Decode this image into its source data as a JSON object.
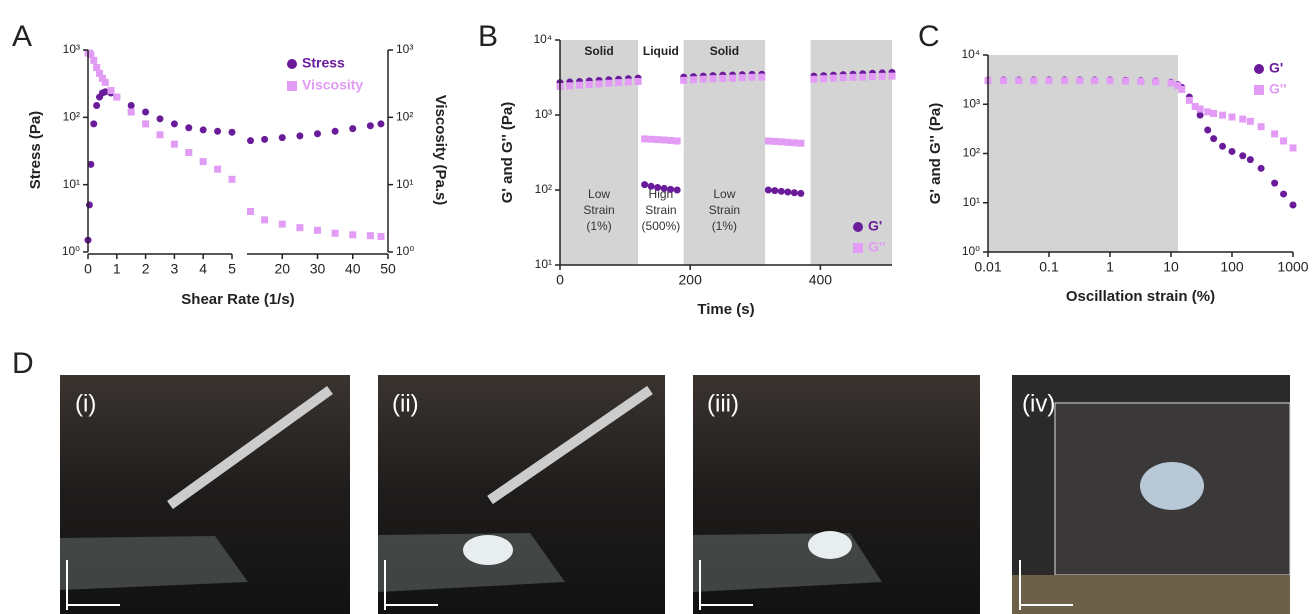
{
  "chart_data": [
    {
      "type": "scatter",
      "panel_label": "A",
      "xlabel": "Shear Rate (1/s)",
      "ylabel": "Stress (Pa)",
      "y2label": "Viscosity (Pa.s)",
      "log_y": true,
      "ylim": [
        1,
        1000
      ],
      "yticks": [
        {
          "value": 1,
          "label": "10⁰"
        },
        {
          "value": 10,
          "label": "10¹"
        },
        {
          "value": 100,
          "label": "10²"
        },
        {
          "value": 1000,
          "label": "10³"
        }
      ],
      "y2lim": [
        1,
        1000
      ],
      "y2ticks": [
        {
          "value": 1,
          "label": "10⁰"
        },
        {
          "value": 10,
          "label": "10¹"
        },
        {
          "value": 100,
          "label": "10²"
        },
        {
          "value": 1000,
          "label": "10³"
        }
      ],
      "segments": [
        {
          "xlim": [
            0,
            5
          ],
          "xticks": [
            0,
            1,
            2,
            3,
            4,
            5
          ],
          "x": [
            0,
            0.05,
            0.1,
            0.2,
            0.3,
            0.4,
            0.5,
            0.6,
            0.8,
            1,
            1.5,
            2,
            2.5,
            3,
            3.5,
            4,
            4.5,
            5
          ]
        },
        {
          "xlim": [
            10,
            50
          ],
          "xticks": [
            20,
            30,
            40,
            50
          ],
          "x": [
            11,
            15,
            20,
            25,
            30,
            35,
            40,
            45,
            48
          ]
        }
      ],
      "series": [
        {
          "name": "Stress",
          "color": "#6a1b9a",
          "marker": "circle",
          "values": [
            [
              1.5,
              5,
              20,
              80,
              150,
              200,
              230,
              240,
              230,
              200,
              150,
              120,
              95,
              80,
              70,
              65,
              62,
              60
            ],
            [
              45,
              47,
              50,
              53,
              57,
              62,
              68,
              75,
              80
            ]
          ]
        },
        {
          "name": "Viscosity",
          "color": "#e29cf5",
          "marker": "square",
          "axis": "y2",
          "values": [
            [
              900,
              900,
              850,
              700,
              550,
              450,
              380,
              330,
              250,
              200,
              120,
              80,
              55,
              40,
              30,
              22,
              17,
              12
            ],
            [
              4,
              3,
              2.6,
              2.3,
              2.1,
              1.9,
              1.8,
              1.75,
              1.7
            ]
          ]
        }
      ],
      "legend": "upper right"
    },
    {
      "type": "scatter",
      "panel_label": "B",
      "xlabel": "Time (s)",
      "ylabel": "G' and G'' (Pa)",
      "log_y": true,
      "xlim": [
        0,
        510
      ],
      "xticks": [
        0,
        200,
        400
      ],
      "ylim": [
        10,
        10000
      ],
      "yticks": [
        {
          "value": 10,
          "label": "10¹"
        },
        {
          "value": 100,
          "label": "10²"
        },
        {
          "value": 1000,
          "label": "10³"
        },
        {
          "value": 10000,
          "label": "10⁴"
        }
      ],
      "regions": [
        {
          "range": [
            0,
            120
          ],
          "shaded": true,
          "label": "Solid",
          "note": [
            "Low",
            "Strain",
            "(1%)"
          ]
        },
        {
          "range": [
            120,
            190
          ],
          "shaded": false,
          "label": "Liquid",
          "note": [
            "High",
            "Strain",
            "(500%)"
          ]
        },
        {
          "range": [
            190,
            315
          ],
          "shaded": true,
          "label": "Solid",
          "note": [
            "Low",
            "Strain",
            "(1%)"
          ]
        },
        {
          "range": [
            385,
            510
          ],
          "shaded": true
        }
      ],
      "x": [
        0,
        15,
        30,
        45,
        60,
        75,
        90,
        105,
        120,
        null,
        130,
        140,
        150,
        160,
        170,
        180,
        null,
        190,
        205,
        220,
        235,
        250,
        265,
        280,
        295,
        310,
        null,
        320,
        330,
        340,
        350,
        360,
        370,
        null,
        390,
        405,
        420,
        435,
        450,
        465,
        480,
        495,
        510
      ],
      "series": [
        {
          "name": "G'",
          "color": "#6a1b9a",
          "marker": "circle",
          "values": [
            2700,
            2750,
            2800,
            2850,
            2900,
            2950,
            3000,
            3050,
            3100,
            null,
            118,
            112,
            108,
            105,
            102,
            100,
            null,
            3200,
            3250,
            3300,
            3350,
            3400,
            3420,
            3450,
            3480,
            3500,
            null,
            100,
            98,
            96,
            94,
            92,
            90,
            null,
            3300,
            3350,
            3400,
            3450,
            3500,
            3550,
            3600,
            3650,
            3700
          ]
        },
        {
          "name": "G''",
          "color": "#e29cf5",
          "marker": "square",
          "values": [
            2400,
            2450,
            2500,
            2550,
            2600,
            2650,
            2700,
            2750,
            2800,
            null,
            480,
            475,
            470,
            465,
            458,
            450,
            null,
            2900,
            2950,
            3000,
            3050,
            3080,
            3100,
            3150,
            3180,
            3200,
            null,
            450,
            445,
            440,
            432,
            426,
            420,
            null,
            3000,
            3050,
            3100,
            3150,
            3180,
            3200,
            3250,
            3280,
            3300
          ]
        }
      ],
      "legend": "lower right"
    },
    {
      "type": "scatter",
      "panel_label": "C",
      "xlabel": "Oscillation strain (%)",
      "ylabel": "G' and G'' (Pa)",
      "log_x": true,
      "log_y": true,
      "xlim": [
        0.01,
        1000
      ],
      "xticks": [
        0.01,
        0.1,
        1,
        10,
        100,
        1000
      ],
      "ylim": [
        1,
        10000
      ],
      "yticks": [
        {
          "value": 1,
          "label": "10⁰"
        },
        {
          "value": 10,
          "label": "10¹"
        },
        {
          "value": 100,
          "label": "10²"
        },
        {
          "value": 1000,
          "label": "10³"
        },
        {
          "value": 10000,
          "label": "10⁴"
        }
      ],
      "regions": [
        {
          "range": [
            0.01,
            13
          ],
          "shaded": true
        }
      ],
      "x": [
        0.01,
        0.018,
        0.032,
        0.056,
        0.1,
        0.18,
        0.32,
        0.56,
        1,
        1.8,
        3.2,
        5.6,
        10,
        13,
        15,
        20,
        25,
        30,
        40,
        50,
        70,
        100,
        150,
        200,
        300,
        500,
        700,
        1000
      ],
      "series": [
        {
          "name": "G'",
          "color": "#6a1b9a",
          "marker": "circle",
          "values": [
            3100,
            3100,
            3100,
            3100,
            3100,
            3100,
            3100,
            3100,
            3100,
            3050,
            3000,
            2950,
            2800,
            2500,
            2200,
            1400,
            900,
            600,
            300,
            200,
            140,
            110,
            90,
            75,
            50,
            25,
            15,
            9
          ]
        },
        {
          "name": "G''",
          "color": "#e29cf5",
          "marker": "square",
          "values": [
            3000,
            3000,
            3000,
            3000,
            3000,
            3000,
            3000,
            3000,
            3000,
            2950,
            2900,
            2850,
            2700,
            2400,
            2000,
            1200,
            900,
            800,
            700,
            650,
            600,
            550,
            500,
            450,
            350,
            250,
            180,
            130
          ]
        }
      ],
      "legend": "upper right"
    }
  ],
  "photos": {
    "panel_label": "D",
    "items": [
      "(i)",
      "(ii)",
      "(iii)",
      "(iv)"
    ]
  }
}
